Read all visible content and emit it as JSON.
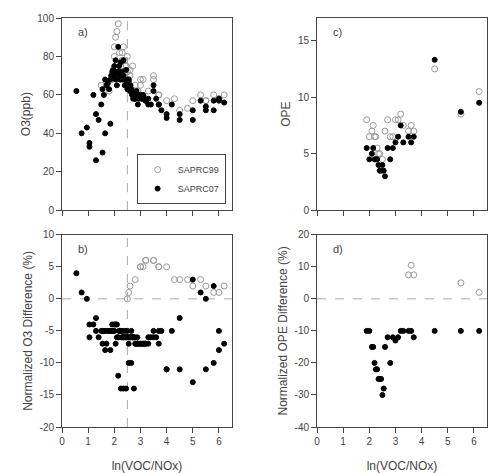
{
  "chart_data": [
    {
      "type": "scatter",
      "annotation": "a)",
      "ylabel": "O3(ppb)",
      "xlim": [
        0,
        6.5
      ],
      "ylim": [
        0,
        100
      ],
      "xticks": [
        0,
        1,
        2,
        3,
        4,
        5,
        6
      ],
      "yticks": [
        0,
        20,
        40,
        60,
        80,
        100
      ],
      "grid": false,
      "tick_labels": "y",
      "legend": "lower right",
      "vlines": [
        {
          "value": 2.5,
          "color": "#aaaaaa",
          "line_style": "dash"
        }
      ],
      "series": [
        {
          "name": "SAPRC99",
          "color": "#999999",
          "marker": "circle-open",
          "x": [
            1.5,
            1.7,
            1.8,
            1.9,
            2.0,
            2.0,
            2.05,
            2.1,
            2.15,
            2.2,
            2.25,
            2.3,
            2.35,
            2.4,
            2.45,
            2.5,
            2.5,
            2.55,
            2.6,
            2.7,
            2.8,
            2.9,
            3.0,
            3.1,
            3.2,
            3.3,
            3.5,
            3.7,
            4.0,
            4.3,
            4.8,
            5.3,
            5.5,
            5.8,
            6.0,
            6.2,
            2.6,
            2.7,
            2.8,
            3.0,
            3.2,
            3.5,
            3.7,
            4.5,
            5.0,
            5.5,
            6.0,
            2.3,
            2.4,
            2.45
          ],
          "values": [
            65,
            67,
            62,
            68,
            80,
            85,
            90,
            93,
            97,
            82,
            75,
            82,
            85,
            78,
            75,
            72,
            80,
            68,
            73,
            62,
            65,
            62,
            65,
            68,
            58,
            62,
            68,
            60,
            57,
            58,
            53,
            60,
            57,
            60,
            58,
            60,
            70,
            75,
            62,
            68,
            58,
            70,
            60,
            52,
            57,
            57,
            58,
            78,
            72,
            75
          ]
        },
        {
          "name": "SAPRC07",
          "color": "#000000",
          "marker": "circle",
          "x": [
            0.55,
            0.75,
            0.95,
            1.05,
            1.2,
            1.3,
            1.4,
            1.5,
            1.55,
            1.6,
            1.65,
            1.7,
            1.75,
            1.8,
            1.85,
            1.88,
            1.92,
            1.95,
            2.0,
            2.0,
            2.05,
            2.1,
            2.1,
            2.15,
            2.18,
            2.2,
            2.22,
            2.25,
            2.28,
            2.3,
            2.32,
            2.35,
            2.38,
            2.4,
            2.42,
            2.45,
            2.48,
            2.5,
            2.52,
            2.55,
            2.58,
            2.6,
            2.62,
            2.65,
            2.68,
            2.7,
            2.72,
            2.75,
            2.78,
            2.8,
            2.82,
            2.85,
            2.88,
            2.9,
            2.95,
            3.0,
            3.05,
            3.1,
            3.15,
            3.2,
            3.3,
            3.4,
            3.5,
            3.6,
            3.7,
            3.8,
            4.0,
            4.2,
            4.5,
            5.0,
            5.3,
            5.5,
            5.8,
            6.0,
            6.2,
            1.05,
            1.3,
            1.55,
            1.65,
            1.85,
            2.05,
            2.15,
            2.25,
            2.35,
            2.45,
            2.55,
            2.65,
            2.75,
            2.9,
            3.1,
            3.2,
            3.3,
            3.5,
            3.7,
            4.0,
            4.5,
            5.0,
            5.5,
            5.8,
            6.0
          ],
          "values": [
            62,
            40,
            43,
            35,
            60,
            50,
            47,
            55,
            63,
            60,
            68,
            65,
            66,
            63,
            68,
            70,
            72,
            73,
            70,
            75,
            68,
            65,
            72,
            72,
            75,
            70,
            68,
            68,
            72,
            70,
            68,
            70,
            68,
            65,
            68,
            65,
            68,
            63,
            65,
            68,
            65,
            62,
            65,
            62,
            60,
            60,
            58,
            60,
            58,
            60,
            58,
            62,
            60,
            60,
            58,
            60,
            58,
            60,
            58,
            57,
            58,
            55,
            62,
            58,
            55,
            52,
            48,
            55,
            47,
            52,
            57,
            54,
            57,
            58,
            56,
            33,
            26,
            30,
            40,
            45,
            78,
            85,
            77,
            78,
            73,
            67,
            63,
            60,
            55,
            58,
            57,
            55,
            65,
            55,
            50,
            50,
            47,
            52,
            52,
            57
          ]
        }
      ]
    },
    {
      "type": "scatter",
      "annotation": "b)",
      "xlabel": "ln(VOC/NOx)",
      "ylabel": "Normalized O3 Difference (%)",
      "xlim": [
        0,
        6.5
      ],
      "ylim": [
        -20,
        10
      ],
      "xticks": [
        0,
        1,
        2,
        3,
        4,
        5,
        6
      ],
      "yticks": [
        -20,
        -15,
        -10,
        -5,
        0,
        5,
        10
      ],
      "grid": false,
      "vlines": [
        {
          "value": 2.5,
          "color": "#aaaaaa",
          "line_style": "dash"
        }
      ],
      "hlines": [
        {
          "value": 0,
          "color": "#aaaaaa",
          "line_style": "dash"
        }
      ],
      "series": [
        {
          "color": "#999999",
          "marker": "circle-open",
          "x": [
            2.5,
            2.6,
            3.0,
            3.2,
            3.5,
            3.7,
            4.0,
            4.5,
            5.0,
            5.3,
            5.5,
            5.8,
            6.0,
            6.2,
            3.0,
            3.2,
            2.8,
            3.7,
            4.3,
            2.55,
            3.1,
            3.5,
            4.8
          ],
          "values": [
            0,
            2,
            5,
            6,
            6,
            5,
            5,
            3,
            2,
            3,
            2,
            1,
            1,
            2,
            5,
            6,
            3,
            5,
            3,
            1,
            5,
            6,
            3
          ]
        },
        {
          "color": "#000000",
          "marker": "circle",
          "x": [
            0.55,
            0.75,
            0.95,
            1.05,
            1.2,
            1.3,
            1.4,
            1.5,
            1.55,
            1.6,
            1.65,
            1.7,
            1.75,
            1.8,
            1.85,
            1.88,
            1.92,
            1.95,
            2.0,
            2.0,
            2.05,
            2.1,
            2.1,
            2.15,
            2.18,
            2.2,
            2.22,
            2.25,
            2.28,
            2.3,
            2.32,
            2.35,
            2.38,
            2.4,
            2.42,
            2.45,
            2.48,
            2.5,
            2.52,
            2.55,
            2.58,
            2.6,
            2.62,
            2.65,
            2.68,
            2.7,
            2.72,
            2.75,
            2.78,
            2.8,
            2.82,
            2.85,
            2.88,
            2.9,
            2.95,
            3.0,
            3.05,
            3.1,
            3.15,
            3.2,
            3.3,
            3.4,
            3.5,
            3.6,
            3.7,
            3.8,
            4.0,
            4.2,
            4.5,
            5.0,
            5.3,
            5.5,
            5.8,
            6.0,
            6.2,
            1.05,
            1.3,
            1.55,
            1.65,
            1.85,
            2.05,
            2.15,
            2.25,
            2.35,
            2.45,
            2.55,
            2.65,
            2.75,
            2.9,
            3.1,
            3.2,
            3.3,
            3.5,
            3.7,
            4.0,
            4.5,
            5.0,
            5.5,
            5.8,
            6.0
          ],
          "values": [
            4,
            1,
            0,
            -4,
            -4,
            -3,
            -6,
            -5,
            -5,
            -5,
            -5,
            -7,
            -5,
            -5,
            -5,
            -5,
            -4,
            -5,
            -4,
            -5,
            -4,
            -4,
            -6,
            -6,
            -5,
            -5,
            -5,
            -5,
            -6,
            -5,
            -6,
            -6,
            -6,
            -5,
            -6,
            -6,
            -6,
            -5,
            -6,
            -7,
            -6,
            -6,
            -6,
            -5,
            -6,
            -6,
            -6,
            -6,
            -6,
            -7,
            -7,
            -7,
            -6,
            -7,
            -7,
            -7,
            -7,
            -7,
            -7,
            -7,
            -7,
            -6,
            -6,
            -6,
            -5,
            -5,
            -11,
            -5,
            -3,
            3,
            1,
            0,
            2,
            -5,
            -7,
            -6,
            -5,
            -7,
            -8,
            -8,
            -7,
            -12,
            -14,
            -14,
            -14,
            -10,
            -10,
            -14,
            -7,
            -7,
            -7,
            -6,
            -5,
            -7,
            -11,
            -11,
            -13,
            -11,
            -10,
            -8
          ]
        }
      ]
    },
    {
      "type": "scatter",
      "annotation": "c)",
      "ylabel": "OPE",
      "xlim": [
        0,
        6.5
      ],
      "ylim": [
        0,
        17
      ],
      "xticks": [
        0,
        1,
        2,
        3,
        4,
        5,
        6
      ],
      "yticks": [
        0,
        5,
        10,
        15
      ],
      "grid": false,
      "tick_labels": "y",
      "series": [
        {
          "color": "#999999",
          "marker": "circle-open",
          "x": [
            1.9,
            2.0,
            2.1,
            2.15,
            2.2,
            2.25,
            2.3,
            2.35,
            2.4,
            2.5,
            2.6,
            2.7,
            2.8,
            2.9,
            3.0,
            3.1,
            3.2,
            3.3,
            3.5,
            3.6,
            3.7,
            4.5,
            5.5,
            6.2
          ],
          "values": [
            8.0,
            6.5,
            7.0,
            7.5,
            6.5,
            6.5,
            5.5,
            5.0,
            5.0,
            4.5,
            7.0,
            8.0,
            6.5,
            6.5,
            8.0,
            8.0,
            8.5,
            7.5,
            7.0,
            7.5,
            7.0,
            12.5,
            8.5,
            10.5
          ]
        },
        {
          "color": "#000000",
          "marker": "circle",
          "x": [
            1.9,
            2.0,
            2.1,
            2.15,
            2.2,
            2.25,
            2.3,
            2.35,
            2.4,
            2.45,
            2.5,
            2.55,
            2.6,
            2.7,
            2.8,
            2.9,
            3.0,
            3.1,
            3.2,
            3.3,
            3.5,
            3.6,
            3.7,
            4.5,
            5.5,
            6.2
          ],
          "values": [
            5.5,
            4.5,
            5.0,
            5.5,
            4.5,
            4.5,
            4.5,
            4.0,
            3.5,
            3.5,
            4.0,
            3.5,
            3.0,
            5.5,
            4.5,
            5.5,
            6.0,
            6.5,
            7.5,
            6.0,
            6.5,
            6.0,
            6.5,
            13.3,
            8.7,
            9.5
          ]
        }
      ]
    },
    {
      "type": "scatter",
      "annotation": "d)",
      "xlabel": "ln(VOC/NOx)",
      "ylabel": "Normalized OPE Difference (%)",
      "xlim": [
        0,
        6.5
      ],
      "ylim": [
        -40,
        20
      ],
      "xticks": [
        0,
        1,
        2,
        3,
        4,
        5,
        6
      ],
      "yticks": [
        -40,
        -30,
        -20,
        -10,
        0,
        10,
        20
      ],
      "grid": false,
      "hlines": [
        {
          "value": 0,
          "color": "#aaaaaa",
          "line_style": "dash"
        }
      ],
      "series": [
        {
          "color": "#999999",
          "marker": "circle-open",
          "x": [
            3.5,
            3.6,
            3.7,
            5.5,
            6.2
          ],
          "values": [
            7.5,
            10.5,
            7.5,
            5.0,
            2.0
          ]
        },
        {
          "color": "#000000",
          "marker": "circle",
          "x": [
            1.9,
            2.0,
            2.1,
            2.15,
            2.2,
            2.25,
            2.3,
            2.35,
            2.4,
            2.45,
            2.5,
            2.55,
            2.6,
            2.7,
            2.8,
            2.9,
            3.0,
            3.1,
            3.2,
            3.3,
            3.5,
            3.6,
            3.7,
            4.5,
            5.5,
            6.2
          ],
          "values": [
            -10,
            -10,
            -15,
            -15,
            -20,
            -22,
            -22,
            -25,
            -25,
            -25,
            -30,
            -28,
            -15,
            -12,
            -20,
            -12,
            -13,
            -12,
            -10,
            -10,
            -10,
            -10,
            -12,
            -10,
            -10,
            -10
          ]
        }
      ]
    }
  ]
}
